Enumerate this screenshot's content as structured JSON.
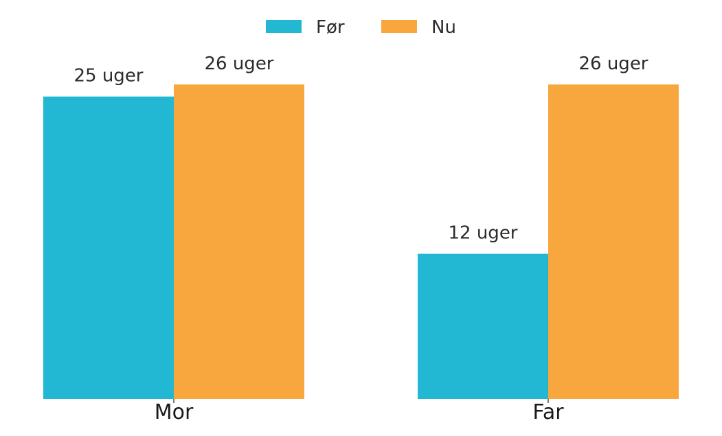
{
  "chart_data": {
    "type": "bar",
    "title": "",
    "xlabel": "",
    "ylabel": "",
    "categories": [
      "Mor",
      "Far"
    ],
    "series": [
      {
        "name": "Før",
        "values": [
          25,
          12
        ],
        "color": "#22b8d3"
      },
      {
        "name": "Nu",
        "values": [
          26,
          26
        ],
        "color": "#f8a73f"
      }
    ],
    "value_suffix": " uger",
    "ylim": [
      0,
      26
    ],
    "grid": false,
    "legend": "top-center"
  }
}
